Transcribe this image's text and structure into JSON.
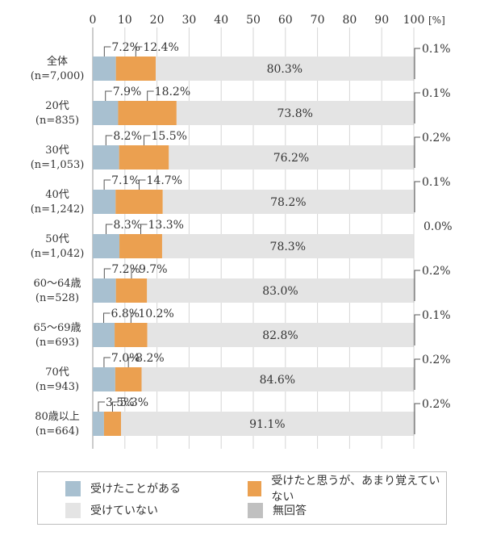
{
  "chart_data": {
    "type": "bar",
    "orientation": "horizontal",
    "stacked": true,
    "unit_label": "[%]",
    "xlim": [
      0,
      100
    ],
    "xticks": [
      0,
      10,
      20,
      30,
      40,
      50,
      60,
      70,
      80,
      90,
      100
    ],
    "colors": {
      "received": "#a8c0d0",
      "received_forgot": "#eba050",
      "not_received": "#e4e4e4",
      "no_answer": "#c0c0c0"
    },
    "categories": [
      {
        "name": "全体",
        "n": "(n=7,000)"
      },
      {
        "name": "20代",
        "n": "(n=835)"
      },
      {
        "name": "30代",
        "n": "(n=1,053)"
      },
      {
        "name": "40代",
        "n": "(n=1,242)"
      },
      {
        "name": "50代",
        "n": "(n=1,042)"
      },
      {
        "name": "60〜64歳",
        "n": "(n=528)"
      },
      {
        "name": "65〜69歳",
        "n": "(n=693)"
      },
      {
        "name": "70代",
        "n": "(n=943)"
      },
      {
        "name": "80歳以上",
        "n": "(n=664)"
      }
    ],
    "series": [
      {
        "key": "received",
        "name": "受けたことがある",
        "values": [
          7.2,
          7.9,
          8.2,
          7.1,
          8.3,
          7.2,
          6.8,
          7.0,
          3.5
        ],
        "labels": [
          "7.2%",
          "7.9%",
          "8.2%",
          "7.1%",
          "8.3%",
          "7.2%",
          "6.8%",
          "7.0%",
          "3.5%"
        ]
      },
      {
        "key": "received_forgot",
        "name": "受けたと思うが、あまり覚えていない",
        "values": [
          12.4,
          18.2,
          15.5,
          14.7,
          13.3,
          9.7,
          10.2,
          8.2,
          5.3
        ],
        "labels": [
          "12.4%",
          "18.2%",
          "15.5%",
          "14.7%",
          "13.3%",
          "9.7%",
          "10.2%",
          "8.2%",
          "5.3%"
        ]
      },
      {
        "key": "not_received",
        "name": "受けていない",
        "values": [
          80.3,
          73.8,
          76.2,
          78.2,
          78.3,
          83.0,
          82.8,
          84.6,
          91.1
        ],
        "labels": [
          "80.3%",
          "73.8%",
          "76.2%",
          "78.2%",
          "78.3%",
          "83.0%",
          "82.8%",
          "84.6%",
          "91.1%"
        ]
      },
      {
        "key": "no_answer",
        "name": "無回答",
        "values": [
          0.1,
          0.1,
          0.2,
          0.1,
          0.0,
          0.2,
          0.1,
          0.2,
          0.2
        ],
        "labels": [
          "0.1%",
          "0.1%",
          "0.2%",
          "0.1%",
          "0.0%",
          "0.2%",
          "0.1%",
          "0.2%",
          "0.2%"
        ]
      }
    ],
    "legend": {
      "placement": "bottom",
      "items": [
        "受けたことがある",
        "受けたと思うが、あまり覚えていない",
        "受けていない",
        "無回答"
      ]
    }
  }
}
